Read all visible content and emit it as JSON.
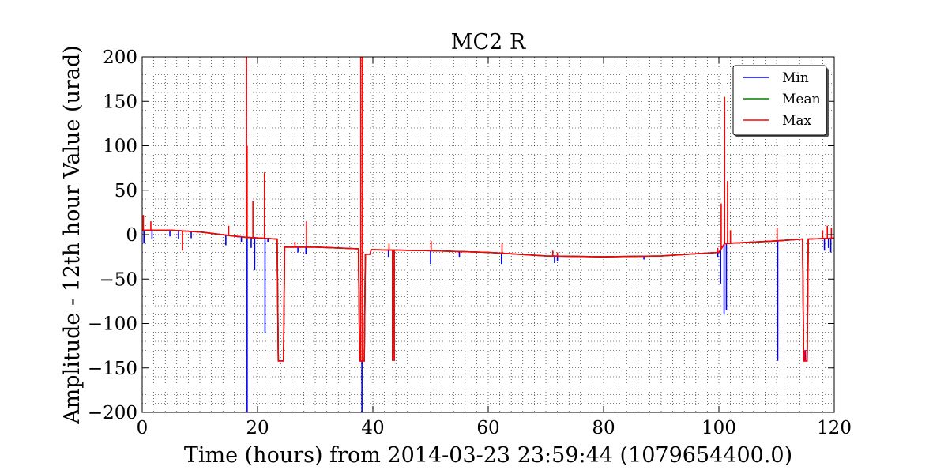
{
  "chart_data": {
    "type": "line",
    "title": "MC2 R",
    "xlabel": "Time (hours) from 2014-03-23 23:59:44 (1079654400.0)",
    "ylabel": "Amplitude - 12th hour Value (urad)",
    "xlim": [
      0,
      120
    ],
    "ylim": [
      -200,
      200
    ],
    "xticks": [
      "0",
      "20",
      "40",
      "60",
      "80",
      "100",
      "120"
    ],
    "yticks": [
      "200",
      "150",
      "100",
      "50",
      "0",
      "−50",
      "−100",
      "−150",
      "−200"
    ],
    "grid": true,
    "legend_position": "top-right",
    "series": [
      {
        "name": "Min",
        "color": "#0000ff",
        "baseline": [
          [
            0,
            5
          ],
          [
            5,
            5
          ],
          [
            10,
            3
          ],
          [
            15,
            -1
          ],
          [
            18,
            -3
          ],
          [
            23.4,
            -5
          ],
          [
            23.6,
            -142
          ],
          [
            24.5,
            -142
          ],
          [
            24.7,
            -14
          ],
          [
            30,
            -14
          ],
          [
            37.5,
            -16
          ],
          [
            37.7,
            -142
          ],
          [
            38.5,
            -142
          ],
          [
            38.7,
            -22
          ],
          [
            39.5,
            -22
          ],
          [
            39.7,
            -17
          ],
          [
            50,
            -18
          ],
          [
            60,
            -20
          ],
          [
            70,
            -24
          ],
          [
            80,
            -25
          ],
          [
            90,
            -24
          ],
          [
            100,
            -20
          ],
          [
            101,
            -10
          ],
          [
            110,
            -7
          ],
          [
            114.5,
            -5
          ],
          [
            114.7,
            -142
          ],
          [
            115.3,
            -142
          ],
          [
            115.5,
            -5
          ],
          [
            120,
            -4
          ]
        ],
        "spikes": [
          [
            0.3,
            -10
          ],
          [
            1.7,
            -5
          ],
          [
            4.8,
            -2
          ],
          [
            6.3,
            -5
          ],
          [
            8.5,
            -4
          ],
          [
            14.5,
            -12
          ],
          [
            16.5,
            -3
          ],
          [
            17.2,
            -8
          ],
          [
            18.2,
            -200
          ],
          [
            18.9,
            -15
          ],
          [
            19.5,
            -40
          ],
          [
            21.3,
            -110
          ],
          [
            21.8,
            -8
          ],
          [
            27,
            -20
          ],
          [
            28.4,
            -22
          ],
          [
            38.1,
            -200
          ],
          [
            42.7,
            -25
          ],
          [
            43.4,
            -142
          ],
          [
            43.7,
            -142
          ],
          [
            50,
            -33
          ],
          [
            55,
            -25
          ],
          [
            62.3,
            -33
          ],
          [
            71.5,
            -32
          ],
          [
            72,
            -30
          ],
          [
            87,
            -28
          ],
          [
            99.8,
            -25
          ],
          [
            100.3,
            -55
          ],
          [
            100.9,
            -90
          ],
          [
            101.3,
            -85
          ],
          [
            110.2,
            -142
          ],
          [
            115,
            -130
          ],
          [
            118.3,
            -18
          ],
          [
            119,
            -15
          ],
          [
            119.4,
            -20
          ]
        ]
      },
      {
        "name": "Mean",
        "color": "#008000",
        "baseline": [
          [
            0,
            5
          ],
          [
            5,
            5
          ],
          [
            10,
            3
          ],
          [
            15,
            -1
          ],
          [
            18,
            -3
          ],
          [
            23.4,
            -5
          ],
          [
            23.6,
            -142
          ],
          [
            24.5,
            -142
          ],
          [
            24.7,
            -14
          ],
          [
            30,
            -14
          ],
          [
            37.5,
            -16
          ],
          [
            37.7,
            -142
          ],
          [
            38.5,
            -142
          ],
          [
            38.7,
            -22
          ],
          [
            39.5,
            -22
          ],
          [
            39.7,
            -17
          ],
          [
            50,
            -18
          ],
          [
            60,
            -20
          ],
          [
            70,
            -24
          ],
          [
            80,
            -25
          ],
          [
            90,
            -24
          ],
          [
            100,
            -20
          ],
          [
            101,
            -10
          ],
          [
            110,
            -7
          ],
          [
            114.5,
            -5
          ],
          [
            114.7,
            -142
          ],
          [
            115.3,
            -142
          ],
          [
            115.5,
            -5
          ],
          [
            120,
            -4
          ]
        ],
        "spikes": [
          [
            18.1,
            -5
          ],
          [
            20.5,
            -4
          ],
          [
            43.4,
            -142
          ],
          [
            43.7,
            -142
          ]
        ]
      },
      {
        "name": "Max",
        "color": "#ff0000",
        "baseline": [
          [
            0,
            5
          ],
          [
            5,
            5
          ],
          [
            10,
            3
          ],
          [
            15,
            -1
          ],
          [
            18,
            -3
          ],
          [
            23.4,
            -5
          ],
          [
            23.6,
            -142
          ],
          [
            24.5,
            -142
          ],
          [
            24.7,
            -14
          ],
          [
            30,
            -14
          ],
          [
            37.5,
            -16
          ],
          [
            37.7,
            -142
          ],
          [
            38.5,
            -142
          ],
          [
            38.7,
            -22
          ],
          [
            39.5,
            -22
          ],
          [
            39.7,
            -17
          ],
          [
            50,
            -18
          ],
          [
            60,
            -20
          ],
          [
            70,
            -24
          ],
          [
            80,
            -25
          ],
          [
            90,
            -24
          ],
          [
            100,
            -20
          ],
          [
            101,
            -10
          ],
          [
            110,
            -7
          ],
          [
            114.5,
            -5
          ],
          [
            114.7,
            -142
          ],
          [
            115.3,
            -142
          ],
          [
            115.5,
            -5
          ],
          [
            120,
            -4
          ]
        ],
        "spikes": [
          [
            0.2,
            22
          ],
          [
            1.5,
            15
          ],
          [
            7,
            -18
          ],
          [
            15,
            10
          ],
          [
            18.1,
            200
          ],
          [
            18.2,
            100
          ],
          [
            19.2,
            38
          ],
          [
            21.2,
            70
          ],
          [
            26.5,
            -8
          ],
          [
            28.5,
            15
          ],
          [
            37.9,
            200
          ],
          [
            38.2,
            200
          ],
          [
            42.8,
            -10
          ],
          [
            43.4,
            -142
          ],
          [
            43.7,
            -142
          ],
          [
            50.1,
            -7
          ],
          [
            62.4,
            -10
          ],
          [
            71.2,
            -18
          ],
          [
            72,
            -20
          ],
          [
            99.8,
            -15
          ],
          [
            100.4,
            35
          ],
          [
            101,
            155
          ],
          [
            101.5,
            60
          ],
          [
            102,
            5
          ],
          [
            110.1,
            8
          ],
          [
            114.9,
            -130
          ],
          [
            118,
            5
          ],
          [
            118.8,
            10
          ],
          [
            119.5,
            8
          ]
        ]
      }
    ]
  }
}
